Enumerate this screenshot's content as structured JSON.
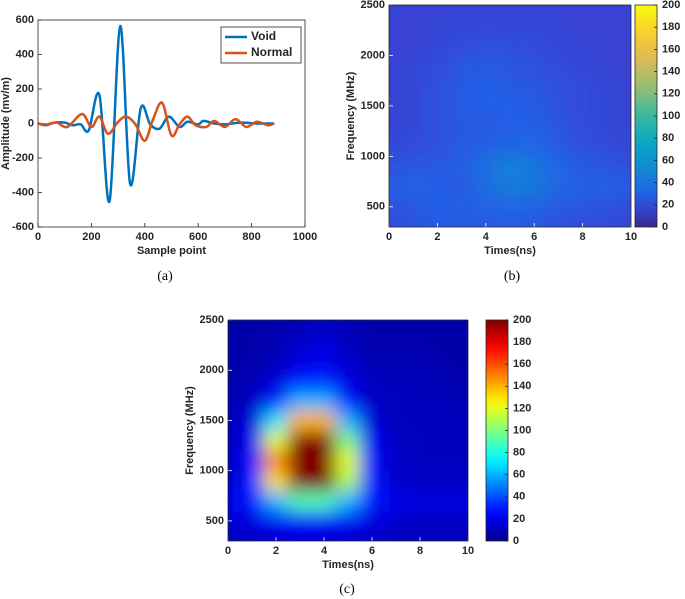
{
  "chart_data": [
    {
      "type": "line",
      "caption": "(a)",
      "xlabel": "Sample point",
      "ylabel": "Amplitude (mv/m)",
      "xlim": [
        0,
        1000
      ],
      "xticks": [
        0,
        200,
        400,
        600,
        800,
        1000
      ],
      "ylim": [
        -600,
        600
      ],
      "yticks": [
        -600,
        -400,
        -200,
        0,
        200,
        400,
        600
      ],
      "legend": "upper right",
      "series": [
        {
          "name": "Void",
          "color": "#0072bd",
          "x": [
            0,
            30,
            60,
            100,
            130,
            160,
            190,
            230,
            268,
            308,
            345,
            385,
            420,
            455,
            490,
            530,
            560,
            600,
            620,
            660,
            700,
            760,
            820,
            885
          ],
          "values": [
            0,
            -10,
            5,
            5,
            -10,
            -5,
            -40,
            165,
            -450,
            565,
            -350,
            90,
            -5,
            -30,
            40,
            -20,
            10,
            -5,
            15,
            0,
            -5,
            5,
            0,
            0
          ]
        },
        {
          "name": "Normal",
          "color": "#d95319",
          "x": [
            0,
            30,
            70,
            110,
            165,
            200,
            230,
            262,
            300,
            330,
            365,
            400,
            430,
            465,
            500,
            530,
            560,
            590,
            630,
            660,
            700,
            740,
            780,
            820,
            860,
            885
          ],
          "values": [
            0,
            -5,
            5,
            -20,
            55,
            -20,
            40,
            -60,
            10,
            40,
            -5,
            -100,
            20,
            120,
            -70,
            -5,
            40,
            -10,
            -20,
            15,
            -20,
            25,
            -20,
            10,
            -10,
            0
          ]
        }
      ]
    },
    {
      "type": "heatmap",
      "caption": "(b)",
      "xlabel": "Times(ns)",
      "ylabel": "Frequency (MHz)",
      "xlim": [
        0,
        10
      ],
      "xticks": [
        0,
        2,
        4,
        6,
        8,
        10
      ],
      "ylim": [
        300,
        2500
      ],
      "yticks": [
        500,
        1000,
        1500,
        2000,
        2500
      ],
      "colormap": "parula",
      "clim": [
        0,
        200
      ],
      "cticks": [
        0,
        20,
        40,
        60,
        80,
        100,
        120,
        140,
        160,
        180,
        200
      ],
      "x": [
        0,
        1,
        2,
        3,
        4,
        5,
        6,
        7,
        8,
        9,
        10
      ],
      "y": [
        300,
        500,
        700,
        900,
        1100,
        1300,
        1500,
        1700,
        1900,
        2100,
        2300,
        2500
      ],
      "z": [
        [
          20,
          22,
          25,
          24,
          25,
          26,
          25,
          22,
          20,
          20,
          18
        ],
        [
          22,
          25,
          28,
          28,
          30,
          32,
          30,
          26,
          24,
          22,
          20
        ],
        [
          28,
          30,
          28,
          24,
          36,
          45,
          42,
          32,
          28,
          30,
          26
        ],
        [
          22,
          24,
          26,
          28,
          38,
          48,
          42,
          32,
          26,
          24,
          22
        ],
        [
          18,
          20,
          22,
          26,
          28,
          34,
          32,
          26,
          22,
          20,
          18
        ],
        [
          16,
          18,
          22,
          26,
          24,
          28,
          28,
          24,
          20,
          18,
          16
        ],
        [
          16,
          18,
          22,
          26,
          28,
          28,
          26,
          22,
          20,
          18,
          16
        ],
        [
          16,
          18,
          22,
          26,
          28,
          26,
          24,
          22,
          20,
          18,
          16
        ],
        [
          16,
          17,
          20,
          24,
          26,
          24,
          22,
          20,
          18,
          16,
          16
        ],
        [
          16,
          16,
          18,
          20,
          22,
          21,
          20,
          18,
          17,
          16,
          16
        ],
        [
          16,
          16,
          17,
          18,
          18,
          18,
          18,
          17,
          16,
          16,
          16
        ],
        [
          16,
          16,
          16,
          16,
          16,
          16,
          16,
          16,
          16,
          16,
          16
        ]
      ]
    },
    {
      "type": "heatmap",
      "caption": "(c)",
      "xlabel": "Times(ns)",
      "ylabel": "Frequency (MHz)",
      "xlim": [
        0,
        10
      ],
      "xticks": [
        0,
        2,
        4,
        6,
        8,
        10
      ],
      "ylim": [
        300,
        2500
      ],
      "yticks": [
        500,
        1000,
        1500,
        2000,
        2500
      ],
      "colormap": "jet",
      "clim": [
        0,
        200
      ],
      "cticks": [
        0,
        20,
        40,
        60,
        80,
        100,
        120,
        140,
        160,
        180,
        200
      ],
      "x": [
        0,
        1,
        2,
        3,
        4,
        5,
        6,
        7,
        8,
        9,
        10
      ],
      "y": [
        300,
        500,
        700,
        900,
        1100,
        1300,
        1500,
        1700,
        1900,
        2100,
        2300,
        2500
      ],
      "z": [
        [
          10,
          12,
          14,
          16,
          16,
          14,
          12,
          10,
          10,
          10,
          10
        ],
        [
          14,
          18,
          22,
          24,
          24,
          22,
          18,
          14,
          12,
          12,
          12
        ],
        [
          20,
          30,
          60,
          90,
          90,
          60,
          30,
          20,
          18,
          18,
          18
        ],
        [
          12,
          30,
          130,
          200,
          200,
          110,
          30,
          14,
          12,
          12,
          12
        ],
        [
          10,
          28,
          150,
          200,
          200,
          120,
          28,
          12,
          10,
          10,
          10
        ],
        [
          10,
          22,
          120,
          200,
          200,
          100,
          22,
          12,
          10,
          10,
          10
        ],
        [
          10,
          16,
          70,
          140,
          140,
          60,
          16,
          10,
          10,
          10,
          10
        ],
        [
          8,
          12,
          30,
          60,
          60,
          28,
          12,
          10,
          10,
          10,
          8
        ],
        [
          6,
          8,
          16,
          30,
          32,
          18,
          10,
          10,
          10,
          8,
          6
        ],
        [
          6,
          6,
          10,
          18,
          22,
          14,
          8,
          8,
          8,
          6,
          6
        ],
        [
          6,
          6,
          8,
          12,
          16,
          10,
          6,
          6,
          6,
          6,
          6
        ],
        [
          6,
          6,
          6,
          8,
          10,
          8,
          6,
          6,
          6,
          6,
          6
        ]
      ]
    }
  ]
}
